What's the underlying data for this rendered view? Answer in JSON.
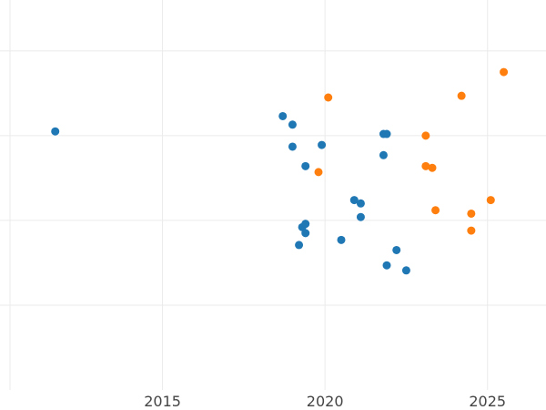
{
  "chart_data": {
    "type": "scatter",
    "title": "",
    "xlabel": "",
    "ylabel": "",
    "grid": true,
    "legend": "none",
    "xlim": [
      2010.0,
      2026.8
    ],
    "ylim": [
      0,
      4.6
    ],
    "x_ticks": [
      2015,
      2020,
      2025
    ],
    "x_tick_labels": [
      "2015",
      "2020",
      "2025"
    ],
    "y_grid_values": [
      1,
      2,
      3,
      4
    ],
    "series": [
      {
        "color": "#1f77b4",
        "points": [
          {
            "x": 2011.7,
            "y": 3.05
          },
          {
            "x": 2018.7,
            "y": 3.23
          },
          {
            "x": 2019.0,
            "y": 3.13
          },
          {
            "x": 2019.0,
            "y": 2.87
          },
          {
            "x": 2019.9,
            "y": 2.89
          },
          {
            "x": 2019.4,
            "y": 2.64
          },
          {
            "x": 2021.8,
            "y": 3.02
          },
          {
            "x": 2021.9,
            "y": 3.02
          },
          {
            "x": 2021.8,
            "y": 2.77
          },
          {
            "x": 2020.9,
            "y": 2.24
          },
          {
            "x": 2021.1,
            "y": 2.2
          },
          {
            "x": 2021.1,
            "y": 2.04
          },
          {
            "x": 2019.3,
            "y": 1.92
          },
          {
            "x": 2019.4,
            "y": 1.96
          },
          {
            "x": 2019.4,
            "y": 1.85
          },
          {
            "x": 2019.2,
            "y": 1.71
          },
          {
            "x": 2020.5,
            "y": 1.77
          },
          {
            "x": 2022.2,
            "y": 1.65
          },
          {
            "x": 2021.9,
            "y": 1.47
          },
          {
            "x": 2022.5,
            "y": 1.41
          }
        ]
      },
      {
        "color": "#ff7f0e",
        "points": [
          {
            "x": 2020.1,
            "y": 3.45
          },
          {
            "x": 2019.8,
            "y": 2.57
          },
          {
            "x": 2023.1,
            "y": 3.0
          },
          {
            "x": 2023.1,
            "y": 2.64
          },
          {
            "x": 2023.3,
            "y": 2.62
          },
          {
            "x": 2024.2,
            "y": 3.47
          },
          {
            "x": 2025.5,
            "y": 3.75
          },
          {
            "x": 2023.4,
            "y": 2.12
          },
          {
            "x": 2024.5,
            "y": 2.08
          },
          {
            "x": 2025.1,
            "y": 2.24
          },
          {
            "x": 2024.5,
            "y": 1.88
          }
        ]
      }
    ]
  }
}
